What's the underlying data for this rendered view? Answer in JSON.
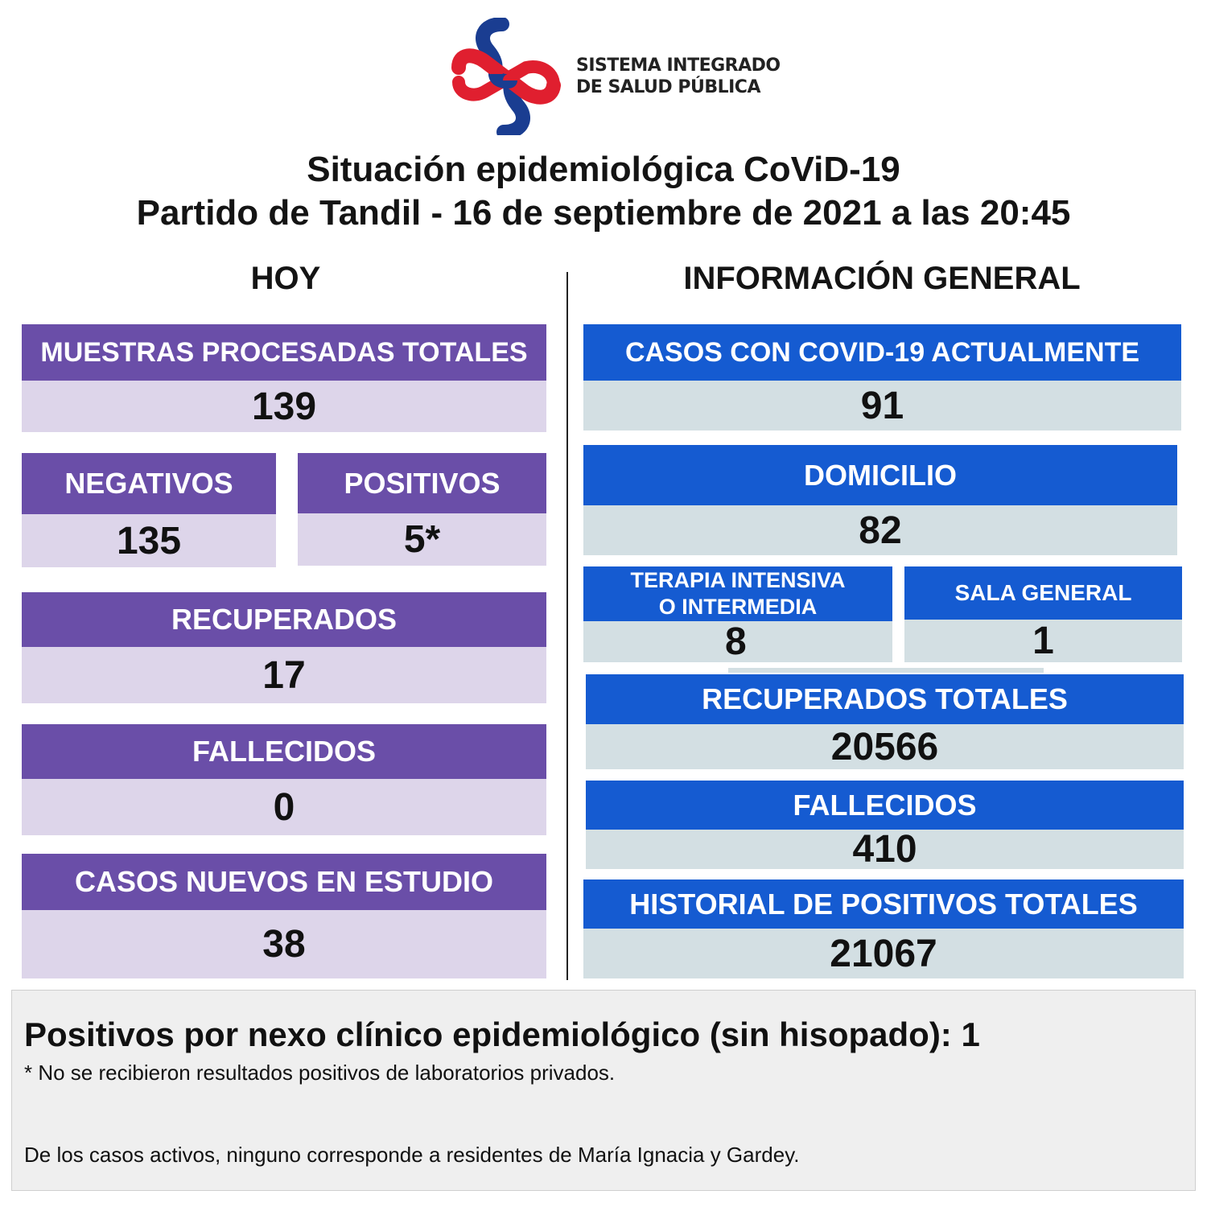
{
  "logo": {
    "line1": "SISTEMA INTEGRADO",
    "line2": "DE SALUD PÚBLICA",
    "colors": {
      "red": "#e01f2f",
      "blue": "#1a3d91"
    }
  },
  "title": {
    "line1": "Situación epidemiológica CoViD-19",
    "line2": "Partido de Tandil - 16 de septiembre de 2021 a las 20:45"
  },
  "hoy": {
    "heading": "HOY",
    "muestras": {
      "label": "MUESTRAS PROCESADAS TOTALES",
      "value": "139"
    },
    "negativos": {
      "label": "NEGATIVOS",
      "value": "135"
    },
    "positivos": {
      "label": "POSITIVOS",
      "value": "5*"
    },
    "recuperados": {
      "label": "RECUPERADOS",
      "value": "17"
    },
    "fallecidos": {
      "label": "FALLECIDOS",
      "value": "0"
    },
    "casos_nuevos": {
      "label": "CASOS NUEVOS EN ESTUDIO",
      "value": "38"
    }
  },
  "general": {
    "heading": "INFORMACIÓN GENERAL",
    "casos_actuales": {
      "label": "CASOS CON COVID-19 ACTUALMENTE",
      "value": "91"
    },
    "domicilio": {
      "label": "DOMICILIO",
      "value": "82"
    },
    "terapia": {
      "label_line1": "TERAPIA INTENSIVA",
      "label_line2": "O INTERMEDIA",
      "value": "8"
    },
    "sala_general": {
      "label": "SALA GENERAL",
      "value": "1"
    },
    "recuperados_totales": {
      "label": "RECUPERADOS TOTALES",
      "value": "20566"
    },
    "fallecidos": {
      "label": "FALLECIDOS",
      "value": "410"
    },
    "historial": {
      "label": "HISTORIAL DE POSITIVOS TOTALES",
      "value": "21067"
    }
  },
  "footer": {
    "main": "Positivos por nexo clínico epidemiológico (sin hisopado): 1",
    "note": "* No se recibieron resultados positivos de laboratorios privados.",
    "note2": "De los casos activos, ninguno corresponde a residentes de María Ignacia y Gardey."
  },
  "colors": {
    "purple_header": "#6a4ea8",
    "purple_value": "#ddd5ea",
    "blue_header": "#155bd1",
    "blue_value": "#d3dfe3"
  }
}
